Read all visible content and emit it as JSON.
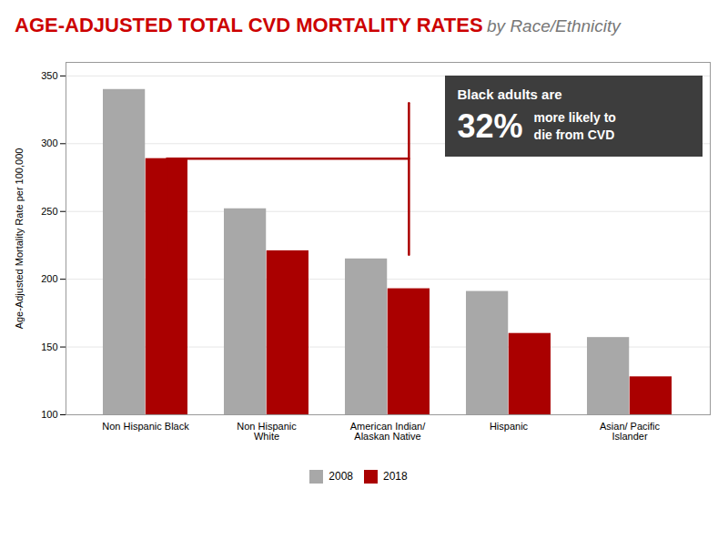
{
  "chart_data": {
    "type": "bar",
    "title": "AGE-ADJUSTED TOTAL CVD MORTALITY RATES",
    "subtitle": "by Race/Ethnicity",
    "categories": [
      "Non Hispanic Black",
      "Non Hispanic\nWhite",
      "American Indian/\nAlaskan Native",
      "Hispanic",
      "Asian/ Pacific\nIslander"
    ],
    "series": [
      {
        "name": "2008",
        "color": "#a8a8a8",
        "values": [
          340,
          252,
          215,
          191,
          157
        ]
      },
      {
        "name": "2018",
        "color": "#aa0000",
        "values": [
          289,
          221,
          193,
          160,
          128
        ]
      }
    ],
    "ylabel": "Age-Adjusted Mortality Rate per 100,000",
    "ylim": [
      100,
      360
    ],
    "yticks": [
      100,
      150,
      200,
      250,
      300,
      350
    ],
    "grid": true,
    "legend": "bottom",
    "annotations": [
      "Black adults are",
      "32%",
      "more likely to\ndie from CVD"
    ],
    "bracket": {
      "series": "2018",
      "from": "Non Hispanic Black",
      "to": "American Indian/\nAlaskan Native",
      "y": 289,
      "y_top": 330,
      "y_bottom": 218,
      "color": "#aa0000"
    }
  }
}
